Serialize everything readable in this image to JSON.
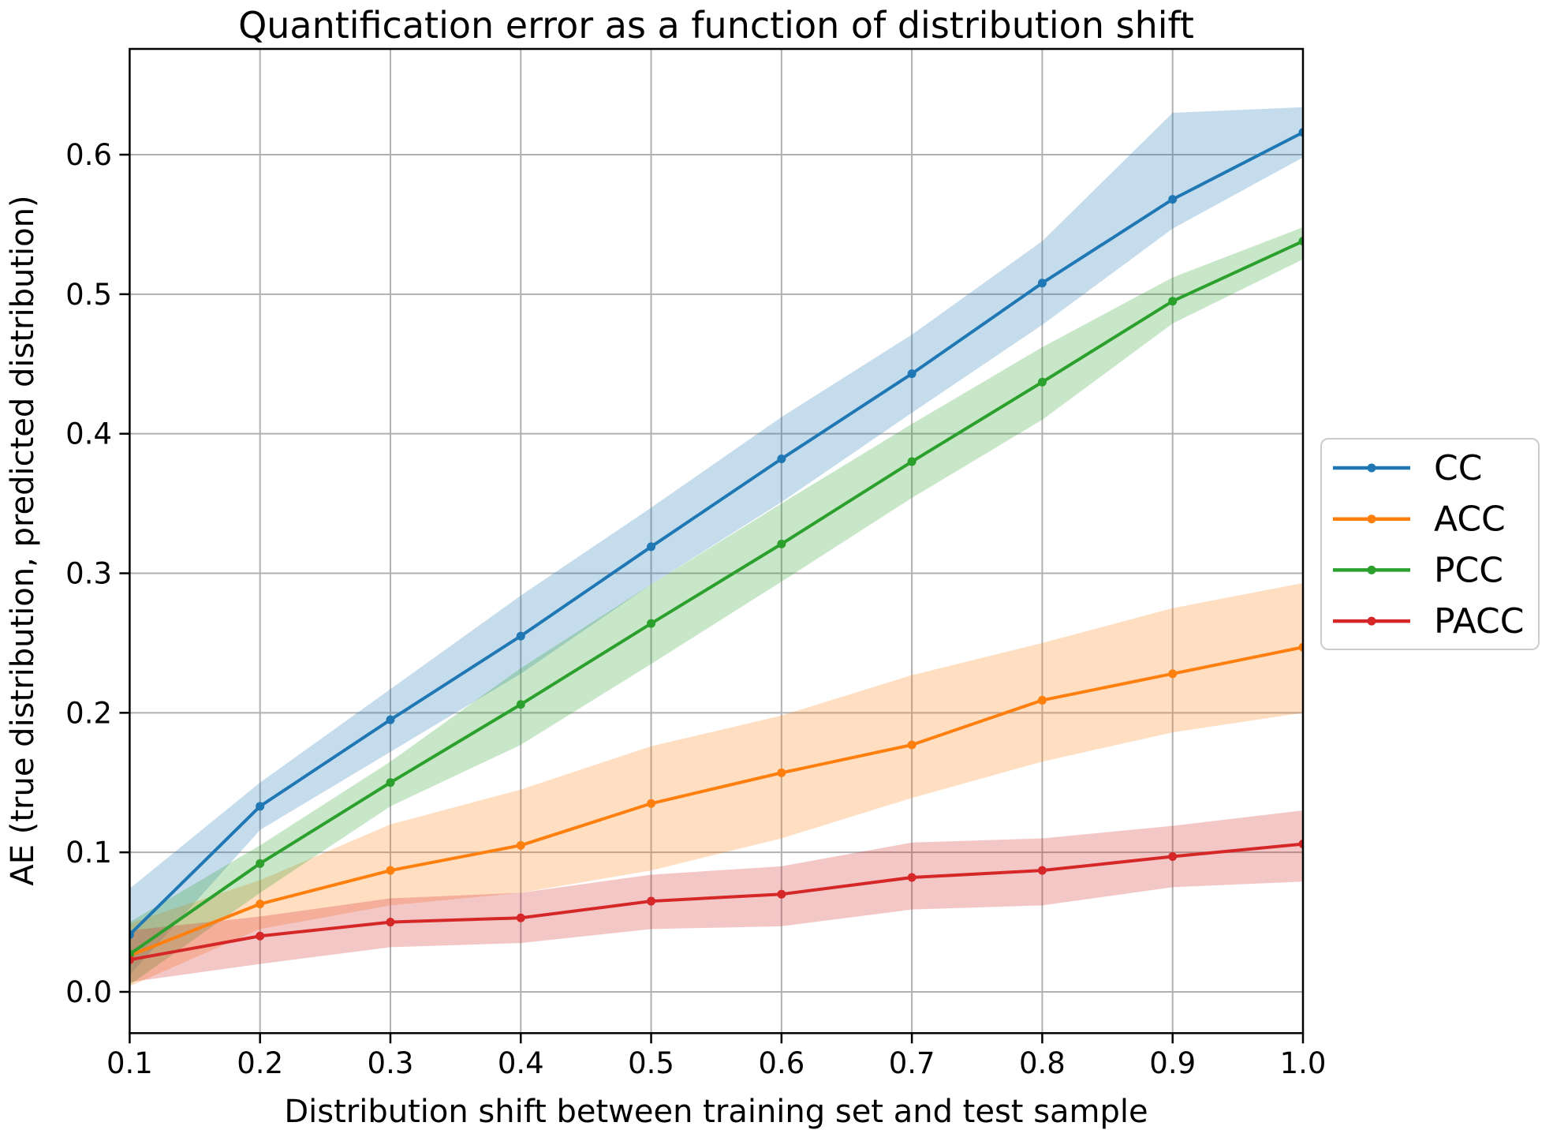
{
  "chart_data": {
    "type": "line",
    "title": "Quantification error as a function of distribution shift",
    "xlabel": "Distribution shift between training set and test sample",
    "ylabel": "AE (true distribution, predicted distribution)",
    "x": [
      0.1,
      0.2,
      0.3,
      0.4,
      0.5,
      0.6,
      0.7,
      0.8,
      0.9,
      1.0
    ],
    "x_tick_labels": [
      "0.1",
      "0.2",
      "0.3",
      "0.4",
      "0.5",
      "0.6",
      "0.7",
      "0.8",
      "0.9",
      "1.0"
    ],
    "y_ticks": [
      0.0,
      0.1,
      0.2,
      0.3,
      0.4,
      0.5,
      0.6
    ],
    "y_tick_labels": [
      "0.0",
      "0.1",
      "0.2",
      "0.3",
      "0.4",
      "0.5",
      "0.6"
    ],
    "xlim": [
      0.1,
      1.0
    ],
    "ylim": [
      -0.0296,
      0.6758
    ],
    "grid": true,
    "grid_color": "#b0b0b0",
    "background": "#ffffff",
    "band_opacity": 0.26,
    "legend": {
      "position": "outside-right",
      "entries": [
        "CC",
        "ACC",
        "PCC",
        "PACC"
      ],
      "edge_color": "#cccccc"
    },
    "series": [
      {
        "name": "CC",
        "color": "#1f77b4",
        "values": [
          0.041,
          0.133,
          0.195,
          0.255,
          0.319,
          0.382,
          0.443,
          0.508,
          0.568,
          0.616
        ],
        "band_lower": [
          0.012,
          0.116,
          0.172,
          0.228,
          0.292,
          0.351,
          0.415,
          0.478,
          0.547,
          0.598
        ],
        "band_upper": [
          0.074,
          0.15,
          0.217,
          0.284,
          0.347,
          0.412,
          0.471,
          0.538,
          0.63,
          0.634
        ]
      },
      {
        "name": "ACC",
        "color": "#ff7f0e",
        "values": [
          0.026,
          0.063,
          0.087,
          0.105,
          0.135,
          0.157,
          0.177,
          0.209,
          0.228,
          0.247
        ],
        "band_lower": [
          0.004,
          0.045,
          0.062,
          0.071,
          0.087,
          0.11,
          0.139,
          0.165,
          0.186,
          0.2
        ],
        "band_upper": [
          0.049,
          0.08,
          0.12,
          0.145,
          0.176,
          0.198,
          0.227,
          0.25,
          0.275,
          0.293
        ]
      },
      {
        "name": "PCC",
        "color": "#2ca02c",
        "values": [
          0.027,
          0.092,
          0.15,
          0.206,
          0.264,
          0.321,
          0.38,
          0.437,
          0.495,
          0.538
        ],
        "band_lower": [
          0.005,
          0.071,
          0.133,
          0.177,
          0.235,
          0.294,
          0.354,
          0.41,
          0.479,
          0.525
        ],
        "band_upper": [
          0.05,
          0.105,
          0.165,
          0.232,
          0.292,
          0.35,
          0.407,
          0.462,
          0.512,
          0.548
        ]
      },
      {
        "name": "PACC",
        "color": "#d62728",
        "values": [
          0.023,
          0.04,
          0.05,
          0.053,
          0.065,
          0.07,
          0.082,
          0.087,
          0.097,
          0.106
        ],
        "band_lower": [
          0.007,
          0.02,
          0.032,
          0.035,
          0.045,
          0.047,
          0.059,
          0.062,
          0.075,
          0.079
        ],
        "band_upper": [
          0.044,
          0.054,
          0.067,
          0.071,
          0.084,
          0.09,
          0.107,
          0.11,
          0.119,
          0.13
        ]
      }
    ]
  }
}
